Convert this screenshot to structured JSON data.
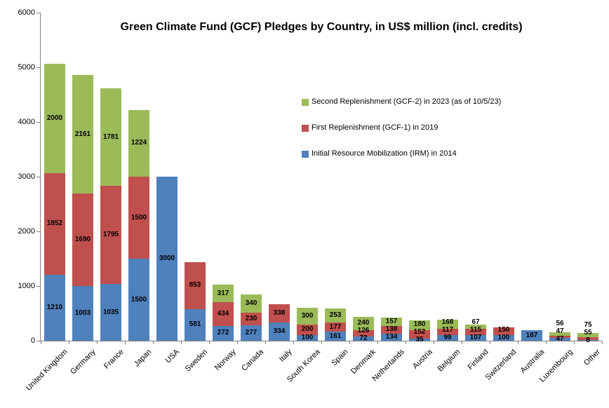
{
  "chart_data": {
    "type": "bar",
    "stacked": true,
    "title": "Green Climate Fund (GCF) Pledges by Country, in US$ million (incl. credits)",
    "xlabel": "",
    "ylabel": "",
    "ylim": [
      0,
      6000
    ],
    "ytick_interval": 1000,
    "grid": false,
    "legend_position": "inside-top-right",
    "legend_order": "reversed",
    "categories": [
      "United Kingdom",
      "Germany",
      "France",
      "Japan",
      "USA",
      "Sweden",
      "Norway",
      "Canada",
      "Italy",
      "South Korea",
      "Spain",
      "Denmark",
      "Netherlands",
      "Austria",
      "Belgium",
      "Finland",
      "Switzerland",
      "Australia",
      "Luxembourg",
      "Other"
    ],
    "series": [
      {
        "id": "irm",
        "name": "Initial Resource Mobilization  (IRM) in 2014",
        "color": "#4F81BD",
        "values": [
          1210,
          1003,
          1035,
          1500,
          3000,
          581,
          272,
          277,
          334,
          100,
          161,
          72,
          134,
          35,
          99,
          107,
          100,
          187,
          47,
          8
        ]
      },
      {
        "id": "gcf1",
        "name": "First Replenishment (GCF-1) in 2019",
        "color": "#C0504D",
        "values": [
          1852,
          1690,
          1795,
          1500,
          0,
          853,
          434,
          230,
          338,
          200,
          177,
          126,
          138,
          152,
          117,
          115,
          150,
          0,
          47,
          55
        ]
      },
      {
        "id": "gcf2",
        "name": "Second Replenishment (GCF-2) in 2023 (as of 10/5/23)",
        "color": "#9BBB59",
        "values": [
          2000,
          2161,
          1781,
          1224,
          0,
          0,
          317,
          340,
          0,
          300,
          253,
          240,
          157,
          180,
          168,
          67,
          0,
          0,
          56,
          75
        ]
      }
    ]
  }
}
